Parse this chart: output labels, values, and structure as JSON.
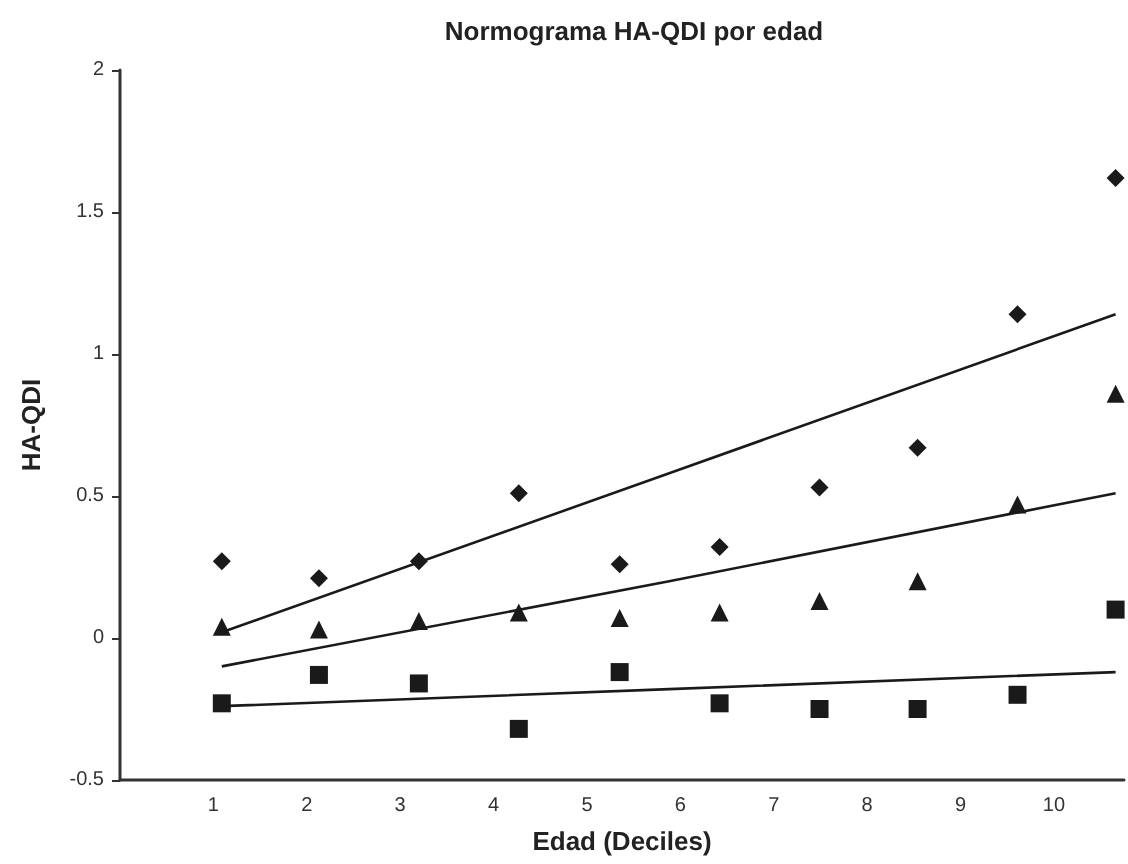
{
  "chart_data": {
    "type": "scatter",
    "title": "Normograma HA-QDI por edad",
    "xlabel": "Edad (Deciles)",
    "ylabel": "HA-QDI",
    "x": [
      1.09,
      2.13,
      3.2,
      4.27,
      5.35,
      6.42,
      7.49,
      8.54,
      9.61,
      10.66
    ],
    "series": [
      {
        "color": "#1a1a1a",
        "marker": "diamond",
        "values": [
          0.27,
          0.21,
          0.27,
          0.51,
          0.26,
          0.32,
          0.53,
          0.67,
          1.14,
          1.62
        ]
      },
      {
        "color": "#1a1a1a",
        "marker": "triangle",
        "values": [
          0.04,
          0.03,
          0.06,
          0.09,
          0.07,
          0.09,
          0.13,
          0.2,
          0.47,
          0.86
        ]
      },
      {
        "color": "#1a1a1a",
        "marker": "square",
        "values": [
          -0.23,
          -0.13,
          -0.16,
          -0.32,
          -0.12,
          -0.23,
          -0.25,
          -0.25,
          -0.2,
          0.1
        ]
      },
      {
        "type": "line",
        "color": "#1a1a1a",
        "marker": "none",
        "x": [
          1.09,
          5.88,
          10.66
        ],
        "values": [
          0.02,
          0.58,
          1.14
        ]
      },
      {
        "type": "line",
        "color": "#1a1a1a",
        "marker": "none",
        "x": [
          1.09,
          5.88,
          10.66
        ],
        "values": [
          -0.1,
          0.2,
          0.51
        ]
      },
      {
        "type": "line",
        "color": "#1a1a1a",
        "marker": "none",
        "x": [
          1.09,
          5.88,
          10.66
        ],
        "values": [
          -0.24,
          -0.18,
          -0.12
        ]
      }
    ],
    "xlim": [
      0,
      10.75
    ],
    "xticks": [
      1,
      2,
      3,
      4,
      5,
      6,
      7,
      8,
      9,
      10
    ],
    "ylim": [
      -0.5,
      2
    ],
    "yticks": [
      -0.5,
      0,
      0.5,
      1,
      1.5,
      2
    ],
    "grid": false
  }
}
